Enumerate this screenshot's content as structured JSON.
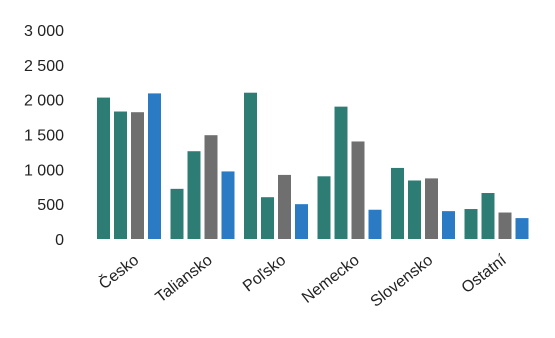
{
  "chart_data": {
    "type": "bar",
    "title": "",
    "xlabel": "",
    "ylabel": "",
    "ylim": [
      0,
      3000
    ],
    "y_ticks": [
      "3 000",
      "2 500",
      "2 000",
      "1 500",
      "1 000",
      "500",
      "0"
    ],
    "y_tick_values": [
      3000,
      2500,
      2000,
      1500,
      1000,
      500,
      0
    ],
    "grid": false,
    "legend": "none",
    "categories": [
      "Česko",
      "Taliansko",
      "Poľsko",
      "Nemecko",
      "Slovensko",
      "Ostatní"
    ],
    "series": [
      {
        "values": [
          2030,
          720,
          2100,
          900,
          1020,
          430
        ],
        "color": "#2d7d74"
      },
      {
        "values": [
          1830,
          1260,
          600,
          1900,
          840,
          660
        ],
        "color": "#2d7d74"
      },
      {
        "values": [
          1820,
          1490,
          920,
          1400,
          870,
          380
        ],
        "color": "#6f6f6f"
      },
      {
        "values": [
          2090,
          970,
          500,
          420,
          400,
          300
        ],
        "color": "#2b7bc4"
      }
    ]
  }
}
